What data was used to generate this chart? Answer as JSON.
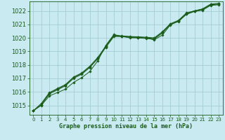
{
  "background_color": "#c8eaf0",
  "grid_color": "#b8d8e0",
  "line_color": "#1a5c1a",
  "marker_color": "#1a5c1a",
  "xlabel": "Graphe pression niveau de la mer (hPa)",
  "ylim": [
    1014.3,
    1022.7
  ],
  "xlim": [
    -0.5,
    23.5
  ],
  "yticks": [
    1015,
    1016,
    1017,
    1018,
    1019,
    1020,
    1021,
    1022
  ],
  "xticks": [
    0,
    1,
    2,
    3,
    4,
    5,
    6,
    7,
    8,
    9,
    10,
    11,
    12,
    13,
    14,
    15,
    16,
    17,
    18,
    19,
    20,
    21,
    22,
    23
  ],
  "series": [
    [
      1014.6,
      1015.0,
      1015.7,
      1015.95,
      1016.2,
      1016.7,
      1017.05,
      1017.5,
      1018.3,
      1019.45,
      1020.25,
      1020.1,
      1020.0,
      1020.0,
      1020.0,
      1019.85,
      1020.2,
      1020.95,
      1021.25,
      1021.75,
      1021.95,
      1022.05,
      1022.4,
      1022.45
    ],
    [
      1014.6,
      1015.05,
      1015.85,
      1016.15,
      1016.45,
      1017.0,
      1017.3,
      1017.8,
      1018.45,
      1019.3,
      1020.1,
      1020.1,
      1020.05,
      1020.0,
      1019.95,
      1019.9,
      1020.35,
      1021.0,
      1021.2,
      1021.75,
      1022.0,
      1022.1,
      1022.45,
      1022.5
    ],
    [
      1014.6,
      1015.05,
      1015.9,
      1016.2,
      1016.5,
      1017.05,
      1017.35,
      1017.85,
      1018.5,
      1019.35,
      1020.15,
      1020.12,
      1020.08,
      1020.05,
      1020.0,
      1019.95,
      1020.4,
      1021.0,
      1021.25,
      1021.8,
      1022.0,
      1022.12,
      1022.48,
      1022.52
    ],
    [
      1014.6,
      1015.15,
      1015.95,
      1016.25,
      1016.55,
      1017.1,
      1017.4,
      1017.9,
      1018.55,
      1019.4,
      1020.2,
      1020.15,
      1020.1,
      1020.08,
      1020.05,
      1020.0,
      1020.45,
      1021.05,
      1021.3,
      1021.85,
      1022.0,
      1022.15,
      1022.5,
      1022.55
    ]
  ]
}
